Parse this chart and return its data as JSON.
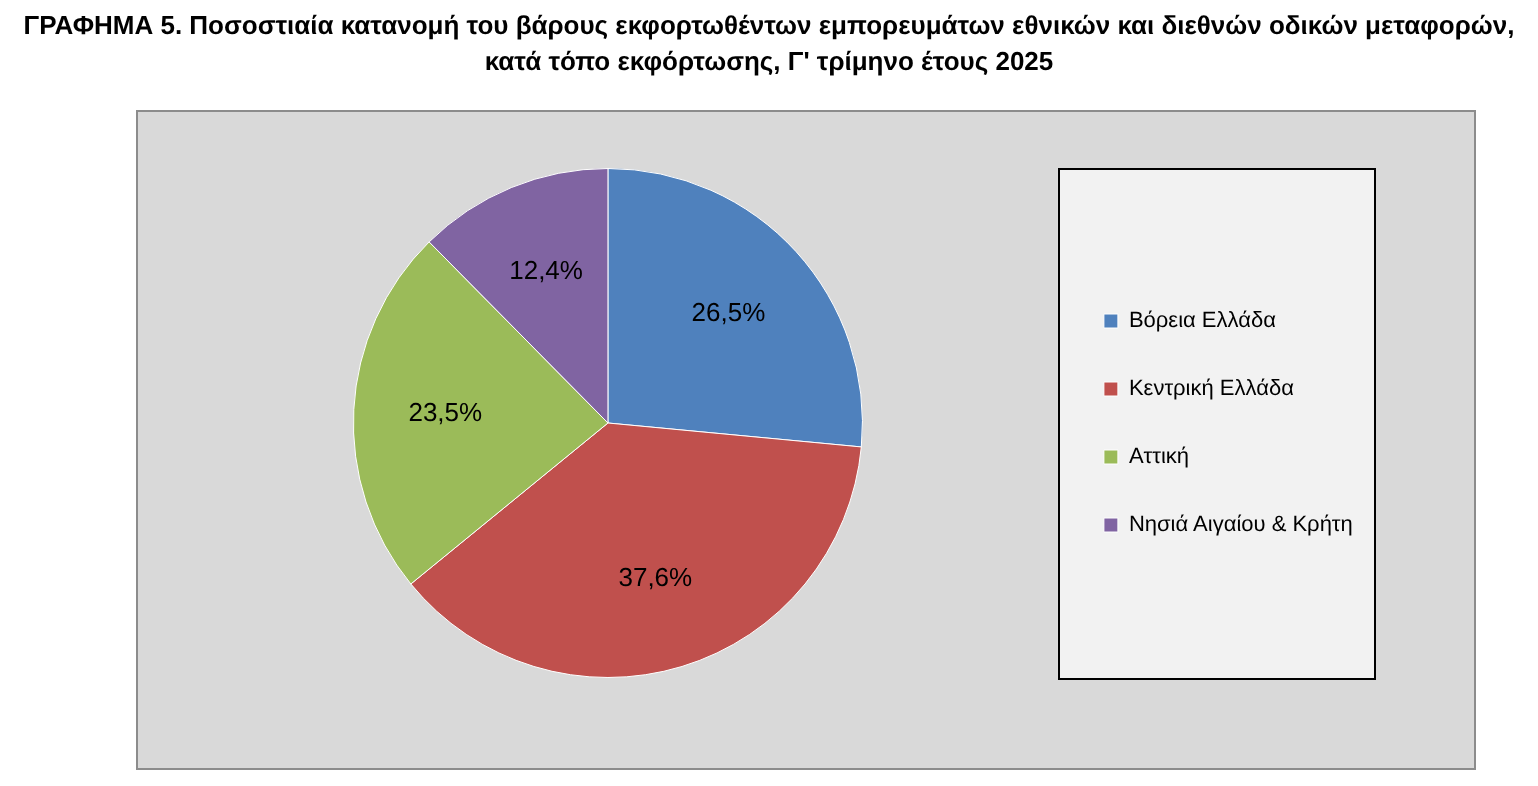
{
  "chart_data": {
    "type": "pie",
    "title": "ΓΡΑΦΗΜΑ 5. Ποσοστιαία κατανομή του βάρους εκφορτωθέντων εμπορευμάτων εθνικών και διεθνών οδικών μεταφορών, κατά τόπο εκφόρτωσης, Γ' τρίμηνο έτους 2025",
    "categories": [
      "Βόρεια Ελλάδα",
      "Κεντρική Ελλάδα",
      "Αττική",
      "Νησιά Αιγαίου & Κρήτη"
    ],
    "values": [
      26.5,
      37.6,
      23.5,
      12.4
    ],
    "colors": [
      "#4f81bd",
      "#c0504d",
      "#9bbb59",
      "#8064a2"
    ],
    "value_labels": [
      "26,5%",
      "37,6%",
      "23,5%",
      "12,4%"
    ],
    "legend": "right"
  }
}
